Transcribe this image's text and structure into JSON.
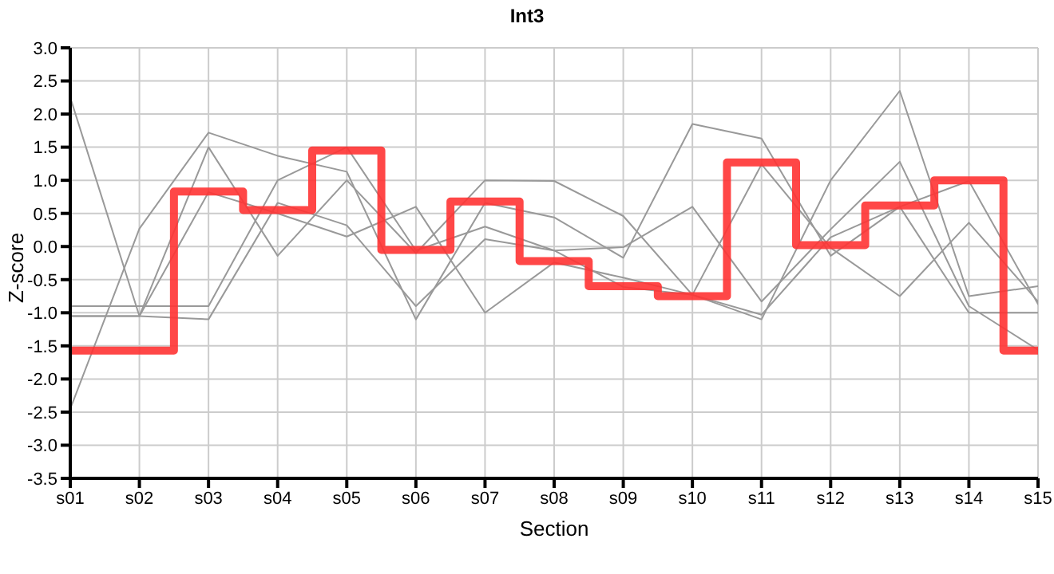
{
  "chart_data": {
    "type": "line",
    "title": "Int3",
    "xlabel": "Section",
    "ylabel": "Z-score",
    "categories": [
      "s01",
      "s02",
      "s03",
      "s04",
      "s05",
      "s06",
      "s07",
      "s08",
      "s09",
      "s10",
      "s11",
      "s12",
      "s13",
      "s14",
      "s15"
    ],
    "series": [
      {
        "type": "line",
        "color": "#999999",
        "values": [
          2.25,
          -1.05,
          1.5,
          -0.14,
          1.0,
          -0.1,
          1.0,
          0.99,
          0.46,
          -0.73,
          -1.1,
          1.0,
          2.35,
          -0.75,
          -0.6
        ]
      },
      {
        "type": "line",
        "color": "#999999",
        "values": [
          -2.45,
          0.27,
          1.72,
          1.37,
          1.13,
          -1.1,
          0.66,
          0.44,
          -0.17,
          1.85,
          1.63,
          -0.14,
          0.6,
          0.99,
          -0.87
        ]
      },
      {
        "type": "line",
        "color": "#999999",
        "values": [
          -0.9,
          -0.9,
          -0.9,
          1.0,
          1.5,
          -0.06,
          0.3,
          -0.06,
          -0.01,
          0.6,
          -0.83,
          0.26,
          1.28,
          -0.9,
          -1.56
        ]
      },
      {
        "type": "line",
        "color": "#999999",
        "values": [
          -1.05,
          -1.05,
          0.82,
          0.5,
          0.15,
          0.6,
          -1.0,
          -0.24,
          -0.47,
          -0.73,
          1.24,
          -0.02,
          -0.75,
          0.36,
          -0.83
        ]
      },
      {
        "type": "line",
        "color": "#999999",
        "values": [
          -1.05,
          -1.05,
          -1.1,
          0.66,
          0.32,
          -0.9,
          0.11,
          -0.06,
          -0.61,
          -0.73,
          -1.03,
          0.14,
          0.6,
          -1.0,
          -1.0
        ]
      },
      {
        "type": "step",
        "color": "#ff3333",
        "values": [
          -1.57,
          -1.57,
          0.83,
          0.55,
          1.45,
          -0.05,
          0.68,
          -0.22,
          -0.6,
          -0.75,
          1.27,
          0.02,
          0.62,
          1.0,
          -1.57
        ]
      }
    ],
    "ylim": [
      -3.5,
      3.0
    ],
    "yticks": [
      -3.5,
      {
        "value": -3,
        "label": "-3.0"
      },
      -2.5,
      {
        "value": -2,
        "label": "-2.0"
      },
      -1.5,
      {
        "value": -1,
        "label": "-1.0"
      },
      -0.5,
      {
        "value": 0,
        "label": "0.0"
      },
      0.5,
      {
        "value": 1,
        "label": "1.0"
      },
      1.5,
      {
        "value": 2,
        "label": "2.0"
      },
      2.5,
      {
        "value": 3,
        "label": "3.0"
      }
    ],
    "grid": true,
    "marker": "none"
  }
}
